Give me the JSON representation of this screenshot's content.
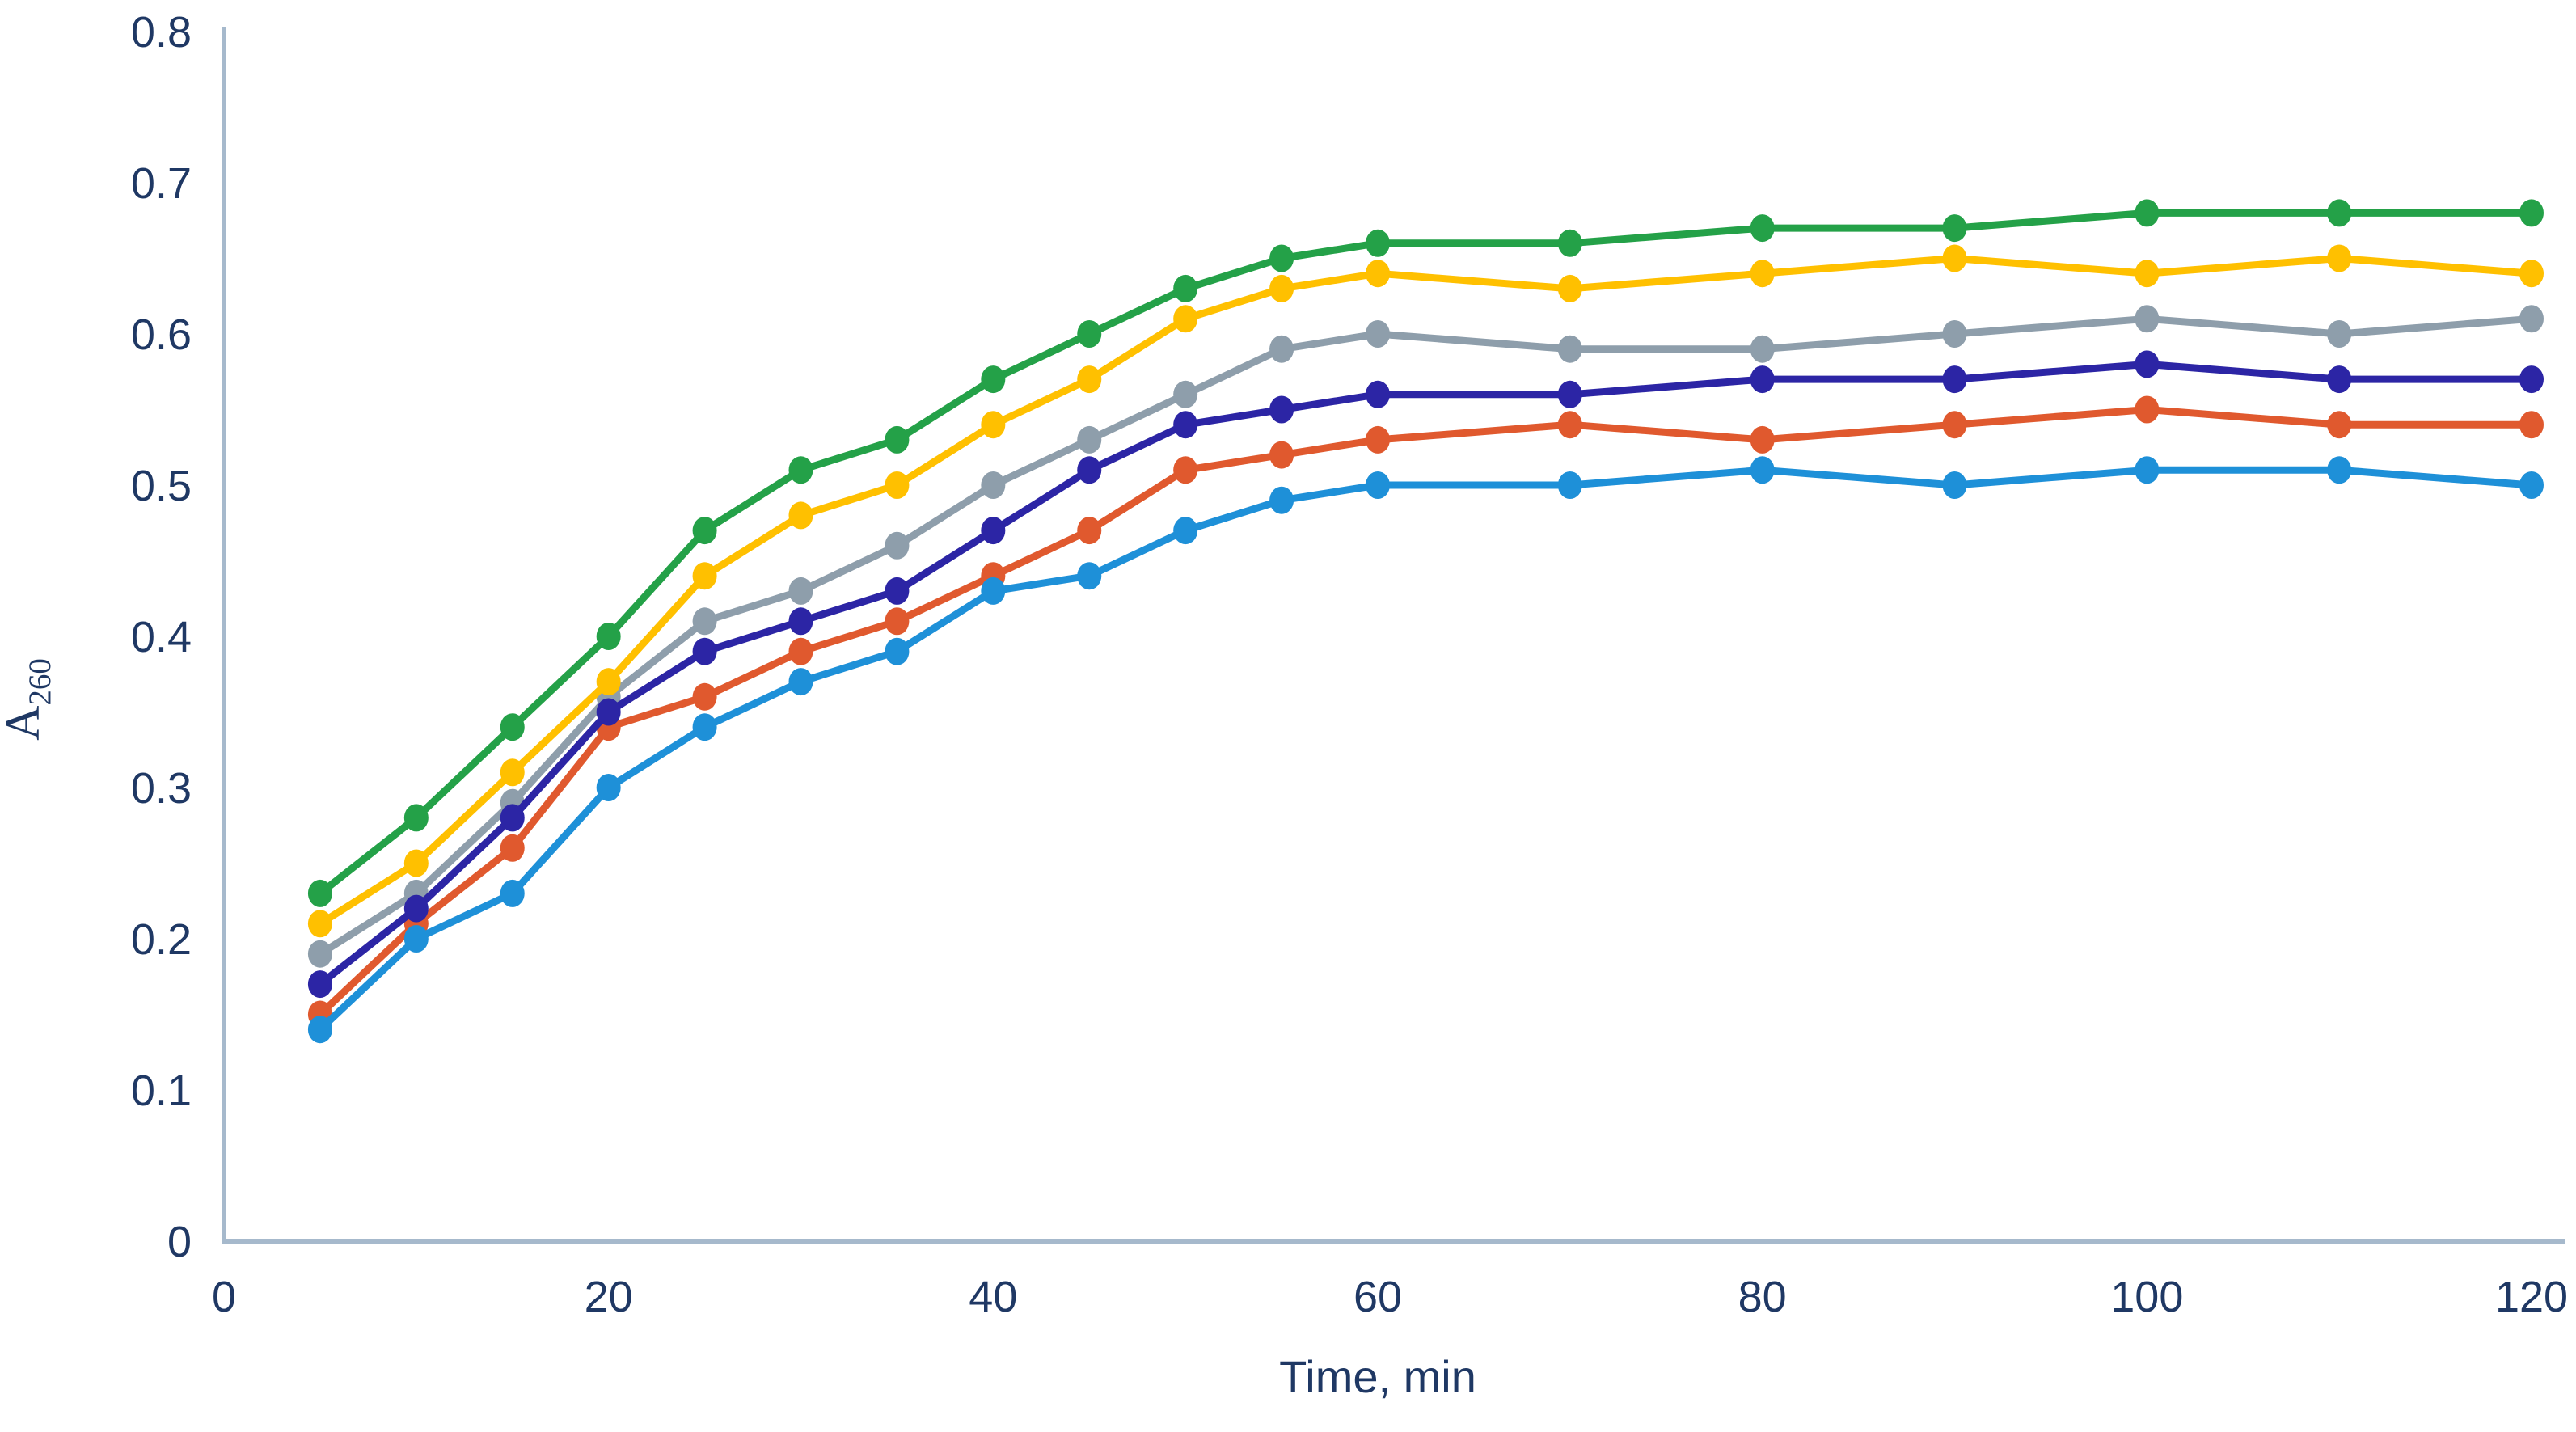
{
  "chart_data": {
    "type": "line",
    "title": "",
    "x_axis": {
      "label": "Time, min",
      "tick_labels": [
        "0",
        "20",
        "40",
        "60",
        "80",
        "100",
        "120"
      ],
      "tick_values": [
        0,
        20,
        40,
        60,
        80,
        100,
        120
      ],
      "range": [
        0,
        120
      ]
    },
    "y_axis": {
      "label": "A",
      "label_subscript": "260",
      "tick_labels": [
        "0",
        "0.1",
        "0.2",
        "0.3",
        "0.4",
        "0.5",
        "0.6",
        "0.7",
        "0.8"
      ],
      "tick_values": [
        0,
        0.1,
        0.2,
        0.3,
        0.4,
        0.5,
        0.6,
        0.7,
        0.8
      ],
      "range": [
        0,
        0.8
      ]
    },
    "x_values": [
      5,
      10,
      15,
      20,
      25,
      30,
      35,
      40,
      45,
      50,
      55,
      60,
      70,
      80,
      90,
      100,
      110,
      120
    ],
    "series": [
      {
        "id": "green",
        "color": "#24A148",
        "values": [
          0.23,
          0.28,
          0.34,
          0.4,
          0.47,
          0.51,
          0.53,
          0.57,
          0.6,
          0.63,
          0.65,
          0.66,
          0.66,
          0.67,
          0.67,
          0.68,
          0.68,
          0.68
        ]
      },
      {
        "id": "yellow",
        "color": "#FFC000",
        "values": [
          0.21,
          0.25,
          0.31,
          0.37,
          0.44,
          0.48,
          0.5,
          0.54,
          0.57,
          0.61,
          0.63,
          0.64,
          0.63,
          0.64,
          0.65,
          0.64,
          0.65,
          0.64
        ]
      },
      {
        "id": "gray",
        "color": "#8E9EAB",
        "values": [
          0.19,
          0.23,
          0.29,
          0.36,
          0.41,
          0.43,
          0.46,
          0.5,
          0.53,
          0.56,
          0.59,
          0.6,
          0.59,
          0.59,
          0.6,
          0.61,
          0.6,
          0.61
        ]
      },
      {
        "id": "navy",
        "color": "#2C25A5",
        "values": [
          0.17,
          0.22,
          0.28,
          0.35,
          0.39,
          0.41,
          0.43,
          0.47,
          0.51,
          0.54,
          0.55,
          0.56,
          0.56,
          0.57,
          0.57,
          0.58,
          0.57,
          0.57
        ]
      },
      {
        "id": "orange",
        "color": "#E0592E",
        "values": [
          0.15,
          0.21,
          0.26,
          0.34,
          0.36,
          0.39,
          0.41,
          0.44,
          0.47,
          0.51,
          0.52,
          0.53,
          0.54,
          0.53,
          0.54,
          0.55,
          0.54,
          0.54
        ]
      },
      {
        "id": "blue",
        "color": "#1E90D8",
        "values": [
          0.14,
          0.2,
          0.23,
          0.3,
          0.34,
          0.37,
          0.39,
          0.43,
          0.44,
          0.47,
          0.49,
          0.5,
          0.5,
          0.51,
          0.5,
          0.51,
          0.51,
          0.5
        ]
      }
    ],
    "legend": "none",
    "grid": "off",
    "marker": "circle",
    "colors": {
      "axis_line": "#A6B9CC",
      "label_text": "#1F3864",
      "background": "#FFFFFF"
    }
  }
}
